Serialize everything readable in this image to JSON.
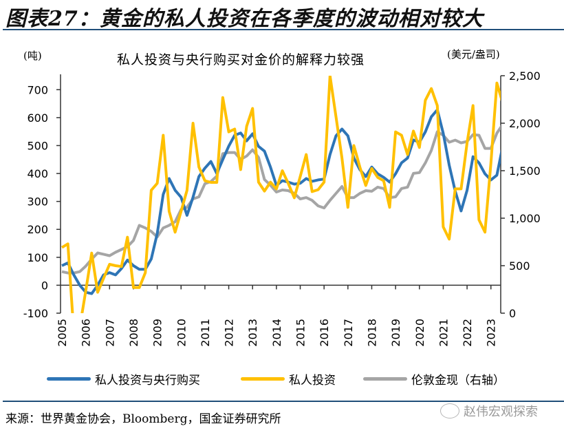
{
  "figure": {
    "title": "图表27：黄金的私人投资在各季度的波动相对较大",
    "source": "来源：世界黄金协会，Bloomberg，国金证券研究所",
    "watermark": "赵伟宏观探索"
  },
  "colors": {
    "rule": "#1f4e79",
    "blue": "#2e75b6",
    "yellow": "#ffc000",
    "gray": "#a5a5a5"
  },
  "chart_data": {
    "type": "line",
    "title": "私人投资与央行购买对金价的解释力较强",
    "ylabel": "(吨)",
    "y2label": "(美元/盎司)",
    "xlabel": "",
    "frequency": "quarterly",
    "x_start": "2005Q1",
    "x_end": "2023Q3",
    "x_tick_labels": [
      "2005",
      "2006",
      "2007",
      "2008",
      "2009",
      "2010",
      "2011",
      "2012",
      "2013",
      "2014",
      "2015",
      "2016",
      "2017",
      "2018",
      "2019",
      "2020",
      "2021",
      "2022",
      "2023"
    ],
    "ylim": [
      -100,
      750
    ],
    "y_ticks": [
      -100,
      0,
      100,
      200,
      300,
      400,
      500,
      600,
      700
    ],
    "y2lim": [
      0,
      2500
    ],
    "y2_ticks": [
      0,
      500,
      1000,
      1500,
      2000,
      2500
    ],
    "y2_tick_labels": [
      "0",
      "500",
      "1,000",
      "1,500",
      "2,000",
      "2,500"
    ],
    "grid": false,
    "legend_position": "bottom",
    "series": [
      {
        "name": "私人投资与央行购买",
        "axis": "left",
        "color": "#2e75b6",
        "values": [
          70,
          80,
          37,
          0,
          -25,
          -30,
          0,
          37,
          45,
          37,
          60,
          90,
          70,
          57,
          57,
          94,
          185,
          325,
          382,
          340,
          315,
          250,
          315,
          389,
          419,
          443,
          400,
          450,
          498,
          537,
          545,
          517,
          542,
          497,
          480,
          423,
          357,
          374,
          369,
          362,
          365,
          382,
          372,
          377,
          380,
          468,
          535,
          559,
          535,
          455,
          414,
          389,
          423,
          399,
          386,
          369,
          399,
          438,
          455,
          520,
          512,
          549,
          603,
          628,
          544,
          430,
          337,
          266,
          340,
          460,
          438,
          399,
          377,
          394,
          500
        ]
      },
      {
        "name": "私人投资",
        "axis": "left",
        "color": "#ffc000",
        "values": [
          135,
          148,
          -170,
          -150,
          -20,
          115,
          -25,
          25,
          75,
          70,
          67,
          172,
          -8,
          -8,
          45,
          340,
          365,
          537,
          265,
          190,
          265,
          340,
          580,
          423,
          374,
          368,
          368,
          672,
          549,
          559,
          414,
          569,
          633,
          369,
          337,
          369,
          345,
          410,
          364,
          313,
          389,
          468,
          335,
          342,
          369,
          750,
          603,
          455,
          279,
          500,
          423,
          357,
          418,
          386,
          374,
          279,
          549,
          537,
          468,
          552,
          493,
          662,
          704,
          643,
          209,
          165,
          345,
          345,
          510,
          643,
          234,
          190,
          436,
          724,
          650
        ]
      },
      {
        "name": "伦敦金现（右轴）",
        "axis": "right",
        "color": "#a5a5a5",
        "values": [
          437,
          423,
          423,
          437,
          496,
          569,
          634,
          620,
          605,
          641,
          670,
          700,
          765,
          925,
          897,
          861,
          802,
          897,
          925,
          962,
          1093,
          1115,
          1203,
          1225,
          1363,
          1385,
          1443,
          1680,
          1691,
          1691,
          1618,
          1654,
          1720,
          1640,
          1407,
          1348,
          1275,
          1297,
          1290,
          1261,
          1203,
          1217,
          1188,
          1130,
          1108,
          1188,
          1261,
          1334,
          1217,
          1217,
          1261,
          1290,
          1283,
          1327,
          1312,
          1217,
          1225,
          1312,
          1327,
          1472,
          1480,
          1582,
          1713,
          1910,
          1873,
          1800,
          1822,
          1793,
          1808,
          1880,
          1873,
          1735,
          1735,
          1895,
          1990
        ]
      }
    ]
  }
}
